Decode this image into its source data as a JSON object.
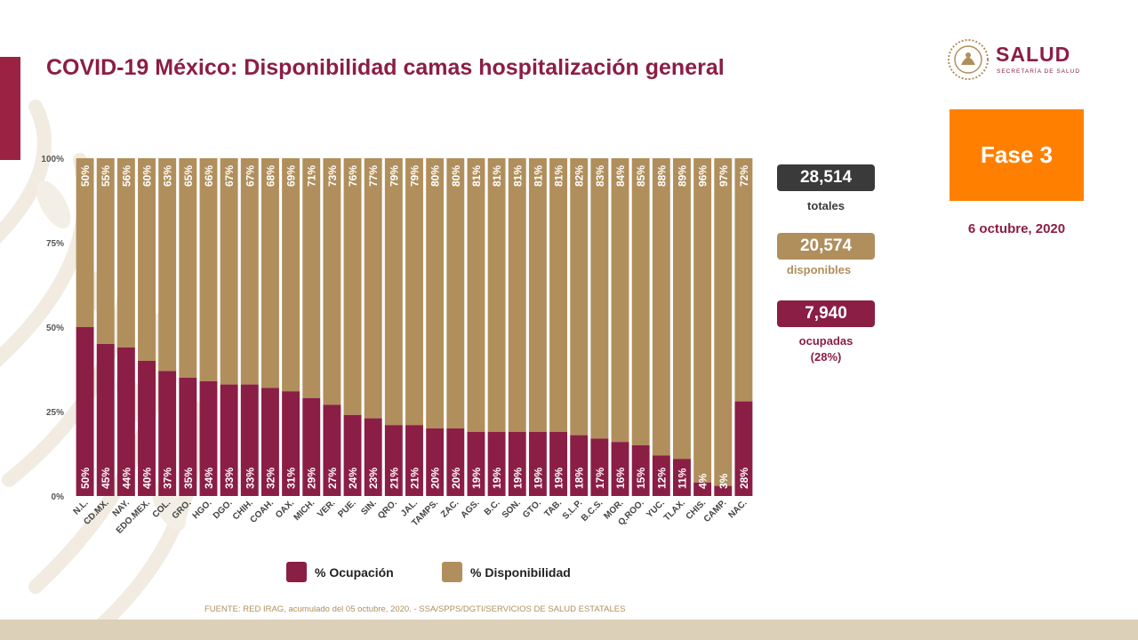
{
  "title": "COVID-19 México: Disponibilidad camas hospitalización general",
  "logo": {
    "word": "SALUD",
    "subtitle": "SECRETARÍA DE SALUD",
    "seal_icon": "national-seal-icon"
  },
  "phase": {
    "label": "Fase 3",
    "color": "#ff8000"
  },
  "report_date": "6 octubre, 2020",
  "kpis": {
    "total": {
      "value": "28,514",
      "label": "totales"
    },
    "available": {
      "value": "20,574",
      "label": "disponibles"
    },
    "occupied": {
      "value": "7,940",
      "label": "ocupadas",
      "pct": "(28%)"
    }
  },
  "legend": {
    "occupied": "% Ocupación",
    "available": "% Disponibilidad"
  },
  "source": "FUENTE: RED IRAG, acumulado del 05 octubre, 2020. - SSA/SPPS/DGTI/SERVICIOS DE SALUD ESTATALES",
  "colors": {
    "occupied": "#8b1e45",
    "available": "#b08f5d",
    "accent": "#9c2244",
    "phase": "#ff8000",
    "footer": "#ddd0b8"
  },
  "chart_data": {
    "type": "bar",
    "stacked": true,
    "categories": [
      "N.L.",
      "CD.MX.",
      "NAY.",
      "EDO.MEX.",
      "COL.",
      "GRO.",
      "HGO.",
      "DGO.",
      "CHIH.",
      "COAH.",
      "OAX.",
      "MICH.",
      "VER.",
      "PUE.",
      "SIN.",
      "QRO.",
      "JAL.",
      "TAMPS.",
      "ZAC.",
      "AGS.",
      "B.C.",
      "SON.",
      "GTO.",
      "TAB.",
      "S.L.P.",
      "B.C.S.",
      "MOR.",
      "Q.ROO.",
      "YUC.",
      "TLAX.",
      "CHIS.",
      "CAMP.",
      "NAC."
    ],
    "series": [
      {
        "name": "% Ocupación",
        "values": [
          50,
          45,
          44,
          40,
          37,
          35,
          34,
          33,
          33,
          32,
          31,
          29,
          27,
          24,
          23,
          21,
          21,
          20,
          20,
          19,
          19,
          19,
          19,
          19,
          18,
          17,
          16,
          15,
          12,
          11,
          4,
          3,
          28
        ]
      },
      {
        "name": "% Disponibilidad",
        "values": [
          50,
          55,
          56,
          60,
          63,
          65,
          66,
          67,
          67,
          68,
          69,
          71,
          73,
          76,
          77,
          79,
          79,
          80,
          80,
          81,
          81,
          81,
          81,
          81,
          82,
          83,
          84,
          85,
          88,
          89,
          96,
          97,
          72
        ]
      }
    ],
    "ytick_labels": [
      "0%",
      "25%",
      "50%",
      "75%",
      "100%"
    ],
    "ylim": [
      0,
      100
    ],
    "legend_position": "bottom",
    "grid": false
  }
}
